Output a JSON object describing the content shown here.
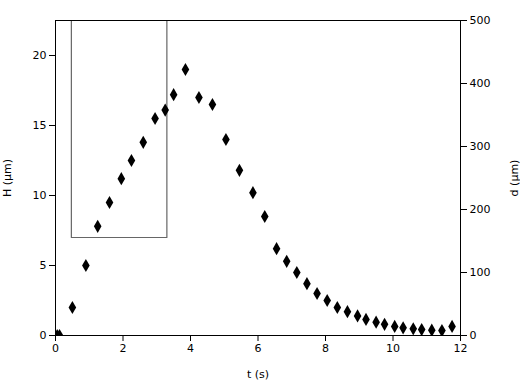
{
  "chart_data": {
    "type": "scatter",
    "xlabel": "t (s)",
    "ylabel": "H (μm)",
    "y2label": "d (μm)",
    "xlim": [
      0,
      12
    ],
    "xticks": [
      0,
      2,
      4,
      6,
      8,
      10,
      12
    ],
    "ylim": [
      0,
      22.5
    ],
    "yticks": [
      0,
      5,
      10,
      15,
      20
    ],
    "y2lim": [
      0,
      500
    ],
    "y2ticks": [
      0,
      100,
      200,
      300,
      400,
      500
    ],
    "series": [
      {
        "type": "line",
        "color": "#666666",
        "line_style": "solid",
        "x": [
          0.0,
          0.0,
          0.47,
          0.47,
          3.3,
          3.3,
          12.0
        ],
        "values": [
          22.5,
          22.5,
          22.5,
          7.0,
          7.0,
          22.5,
          22.5
        ]
      },
      {
        "type": "scatter",
        "color": "black",
        "marker": "diamond",
        "x": [
          0.05,
          0.12,
          0.5,
          0.9,
          1.25,
          1.6,
          1.95,
          2.25,
          2.6,
          2.95,
          3.25,
          3.5,
          3.85,
          4.25,
          4.65,
          5.05,
          5.45,
          5.85,
          6.2,
          6.55,
          6.85,
          7.15,
          7.45,
          7.75,
          8.05,
          8.35,
          8.65,
          8.95,
          9.2,
          9.5,
          9.75,
          10.05,
          10.3,
          10.6,
          10.85,
          11.15,
          11.45,
          11.75
        ],
        "values": [
          0.0,
          0.0,
          2.0,
          5.0,
          7.8,
          9.5,
          11.2,
          12.5,
          13.8,
          15.5,
          16.1,
          17.2,
          19.0,
          17.0,
          16.5,
          14.0,
          11.8,
          10.2,
          8.5,
          6.2,
          5.3,
          4.5,
          3.7,
          3.0,
          2.5,
          2.0,
          1.7,
          1.4,
          1.15,
          0.95,
          0.8,
          0.65,
          0.55,
          0.48,
          0.42,
          0.38,
          0.35,
          0.65
        ]
      }
    ]
  }
}
